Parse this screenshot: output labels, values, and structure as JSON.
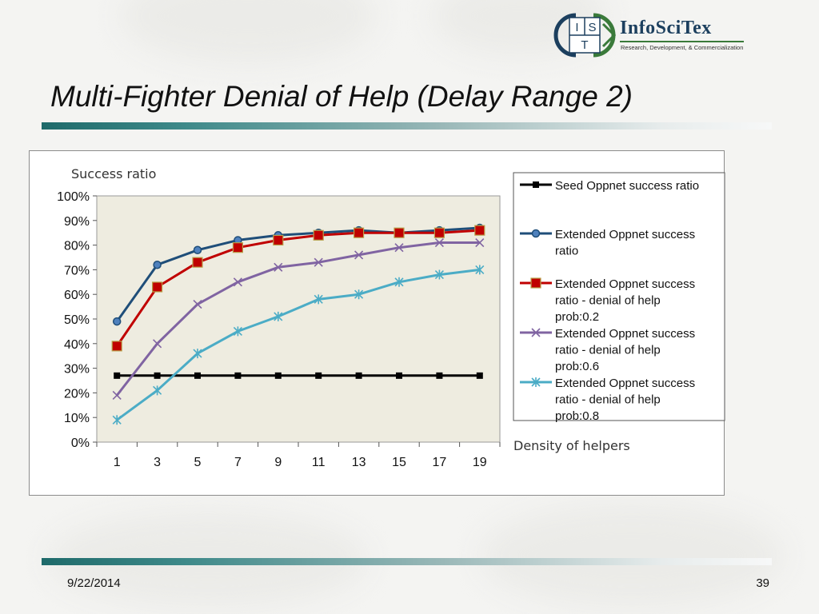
{
  "slide": {
    "title": "Multi-Fighter Denial of Help (Delay Range 2)",
    "footer_date": "9/22/2014",
    "page_number": "39"
  },
  "logo": {
    "letters": [
      "I",
      "S",
      "T"
    ],
    "wordmark": "InfoSciTex",
    "tagline": "Research, Development, & Commercialization",
    "colors": {
      "navy": "#1c3f5e",
      "green": "#3a7a3a"
    }
  },
  "chart_data": {
    "type": "line",
    "ylabel": "Success  ratio",
    "xlabel": "Density of helpers",
    "categories": [
      "1",
      "3",
      "5",
      "7",
      "9",
      "11",
      "13",
      "15",
      "17",
      "19"
    ],
    "ylim": [
      0,
      100
    ],
    "yticks": [
      "0%",
      "10%",
      "20%",
      "30%",
      "40%",
      "50%",
      "60%",
      "70%",
      "80%",
      "90%",
      "100%"
    ],
    "plot_background": "#eeece0",
    "legend_position": "right",
    "series": [
      {
        "name": "Seed Oppnet success ratio",
        "lines": [
          "Seed Oppnet success ratio"
        ],
        "color": "#000000",
        "marker": "square",
        "values": [
          27,
          27,
          27,
          27,
          27,
          27,
          27,
          27,
          27,
          27
        ]
      },
      {
        "name": "Extended Oppnet success ratio",
        "lines": [
          "Extended Oppnet success",
          "ratio"
        ],
        "color": "#1f4e79",
        "marker": "circle",
        "values": [
          49,
          72,
          78,
          82,
          84,
          85,
          86,
          85,
          86,
          87
        ]
      },
      {
        "name": "Extended Oppnet success ratio - denial of help prob:0.2",
        "lines": [
          "Extended Oppnet success",
          "ratio - denial of help",
          "prob:0.2"
        ],
        "color": "#c00000",
        "marker": "square",
        "values": [
          39,
          63,
          73,
          79,
          82,
          84,
          85,
          85,
          85,
          86
        ]
      },
      {
        "name": "Extended Oppnet success ratio - denial of help prob:0.6",
        "lines": [
          "Extended Oppnet success",
          "ratio - denial of help",
          "prob:0.6"
        ],
        "color": "#8064a2",
        "marker": "x",
        "values": [
          19,
          40,
          56,
          65,
          71,
          73,
          76,
          79,
          81,
          81
        ]
      },
      {
        "name": "Extended Oppnet success ratio - denial of help prob:0.8",
        "lines": [
          "Extended Oppnet success",
          "ratio - denial of help",
          "prob:0.8"
        ],
        "color": "#4bacc6",
        "marker": "asterisk",
        "values": [
          9,
          21,
          36,
          45,
          51,
          58,
          60,
          65,
          68,
          70
        ]
      }
    ]
  }
}
